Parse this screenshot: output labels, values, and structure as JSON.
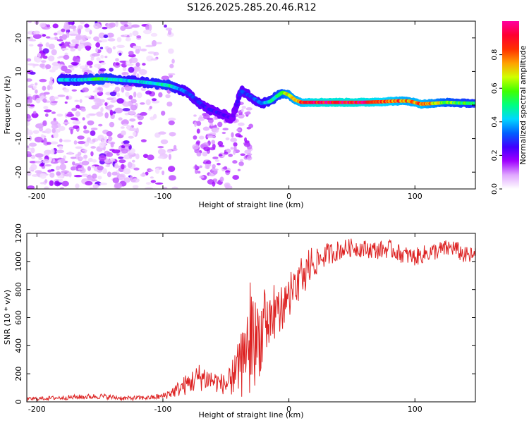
{
  "page": {
    "title": "S126.2025.285.20.46.R12"
  },
  "colors": {
    "signal": "#dd2222",
    "axes": "#000000"
  },
  "chart_data": [
    {
      "type": "heatmap",
      "title": "S126.2025.285.20.46.R12",
      "xlabel": "Height of straight line (km)",
      "ylabel": "Frequency (Hz)",
      "xlim": [
        -208,
        148
      ],
      "ylim": [
        -25,
        25
      ],
      "xticks": [
        -200,
        -100,
        0,
        100
      ],
      "yticks": [
        -20,
        -10,
        0,
        10,
        20
      ],
      "colorbar": {
        "label": "Normalized spectral amplitude",
        "range": [
          0,
          1
        ],
        "ticks": [
          "0.0",
          "0.2",
          "0.4",
          "0.6",
          "0.8"
        ],
        "tick_values": [
          0.0,
          0.2,
          0.4,
          0.6,
          0.8
        ],
        "colormap": [
          "#ffffff",
          "#e0a8ff",
          "#a000ff",
          "#4000ff",
          "#0060ff",
          "#00d8ff",
          "#00ff80",
          "#40ff00",
          "#d0ff00",
          "#ffa000",
          "#ff3000",
          "#ff0030",
          "#ff00a0"
        ]
      },
      "ridge": {
        "x": [
          -180,
          -165,
          -150,
          -135,
          -120,
          -108,
          -95,
          -85,
          -78,
          -72,
          -65,
          -55,
          -45,
          -38,
          -30,
          -22,
          -15,
          -10,
          -5,
          0,
          5,
          10,
          20,
          40,
          60,
          75,
          85,
          95,
          105,
          115,
          125,
          135,
          148
        ],
        "freq": [
          7.5,
          7.5,
          7.8,
          7.5,
          7.0,
          6.5,
          5.8,
          4.5,
          3.0,
          1.0,
          -1.0,
          -2.5,
          -4.0,
          4.2,
          2.5,
          0.5,
          1.0,
          2.5,
          3.8,
          3.0,
          1.5,
          0.8,
          0.8,
          0.8,
          0.8,
          1.0,
          1.2,
          1.2,
          0.3,
          0.5,
          0.8,
          0.6,
          0.5
        ],
        "amp": [
          0.4,
          0.4,
          0.55,
          0.45,
          0.4,
          0.45,
          0.5,
          0.35,
          0.3,
          0.3,
          0.25,
          0.25,
          0.2,
          0.3,
          0.3,
          0.35,
          0.45,
          0.5,
          0.6,
          0.7,
          0.75,
          0.8,
          0.9,
          0.92,
          0.9,
          0.85,
          0.8,
          0.75,
          0.8,
          0.7,
          0.6,
          0.55,
          0.5
        ]
      }
    },
    {
      "type": "line",
      "xlabel": "Height of straight line (km)",
      "ylabel": "SNR (10 * v/v)",
      "xlim": [
        -208,
        148
      ],
      "ylim": [
        0,
        1200
      ],
      "xticks": [
        -200,
        -100,
        0,
        100
      ],
      "yticks": [
        0,
        200,
        400,
        600,
        800,
        1000,
        1200
      ],
      "series": [
        {
          "name": "SNR",
          "x": [
            -208,
            -180,
            -150,
            -130,
            -110,
            -100,
            -90,
            -80,
            -70,
            -60,
            -50,
            -45,
            -40,
            -35,
            -30,
            -25,
            -20,
            -15,
            -10,
            -5,
            0,
            5,
            10,
            15,
            20,
            25,
            30,
            40,
            50,
            60,
            70,
            80,
            90,
            100,
            110,
            120,
            130,
            140,
            148
          ],
          "values": [
            20,
            30,
            40,
            25,
            30,
            40,
            80,
            130,
            180,
            150,
            120,
            160,
            230,
            300,
            380,
            450,
            520,
            580,
            620,
            680,
            740,
            800,
            860,
            920,
            980,
            1020,
            1050,
            1080,
            1100,
            1090,
            1080,
            1090,
            1050,
            1030,
            1060,
            1080,
            1100,
            1040,
            1040
          ],
          "spread": [
            15,
            20,
            25,
            20,
            20,
            30,
            60,
            100,
            130,
            100,
            90,
            150,
            250,
            350,
            420,
            380,
            320,
            280,
            240,
            200,
            170,
            160,
            150,
            140,
            120,
            110,
            100,
            90,
            80,
            80,
            80,
            80,
            80,
            80,
            80,
            80,
            80,
            80,
            80
          ]
        }
      ]
    }
  ]
}
